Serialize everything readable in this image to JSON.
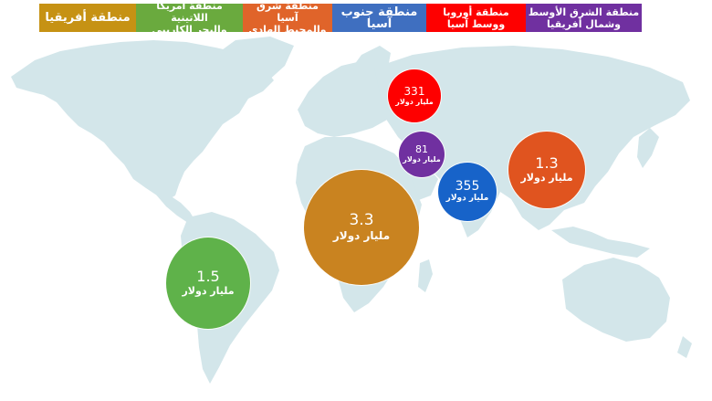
{
  "colors": {
    "map": "#d3e6ea",
    "africa": "#c69214",
    "latin_america": "#6aaa3e",
    "east_asia": "#e0642a",
    "south_asia": "#3f6fc0",
    "europe_central_asia": "#fe0000",
    "middle_east": "#7030a0"
  },
  "legend": [
    {
      "label": "منطقة أفريقيا",
      "color": "#c69214"
    },
    {
      "label": "منطقة أمريكا اللاتينية\nوالبحر الكاريبي",
      "color": "#6aaa3e"
    },
    {
      "label": "منطقة شرق آسيا\nوالمحيط الهادى",
      "color": "#e0642a"
    },
    {
      "label": "منطقة جنوب آسيا",
      "color": "#3f6fc0"
    },
    {
      "label": "منطقة أوروبا\nووسط آسيا",
      "color": "#fe0000"
    },
    {
      "label": "منطقة الشرق الأوسط\nوشمال أفريقيا",
      "color": "#7030a0"
    }
  ],
  "bubbles": [
    {
      "id": "europe",
      "value": "331",
      "unit": "مليار دولار",
      "color": "#fe0000"
    },
    {
      "id": "middle-east",
      "value": "81",
      "unit": "مليار دولار",
      "color": "#7030a0"
    },
    {
      "id": "south-asia",
      "value": "355",
      "unit": "مليار دولار",
      "color": "#1763c9"
    },
    {
      "id": "east-asia",
      "value": "1.3",
      "unit": "مليار دولار",
      "color": "#e0541f"
    },
    {
      "id": "africa",
      "value": "3.3",
      "unit": "مليار دولار",
      "color": "#c98320"
    },
    {
      "id": "latin-america",
      "value": "1.5",
      "unit": "مليار دولار",
      "color": "#5fb24a"
    }
  ]
}
